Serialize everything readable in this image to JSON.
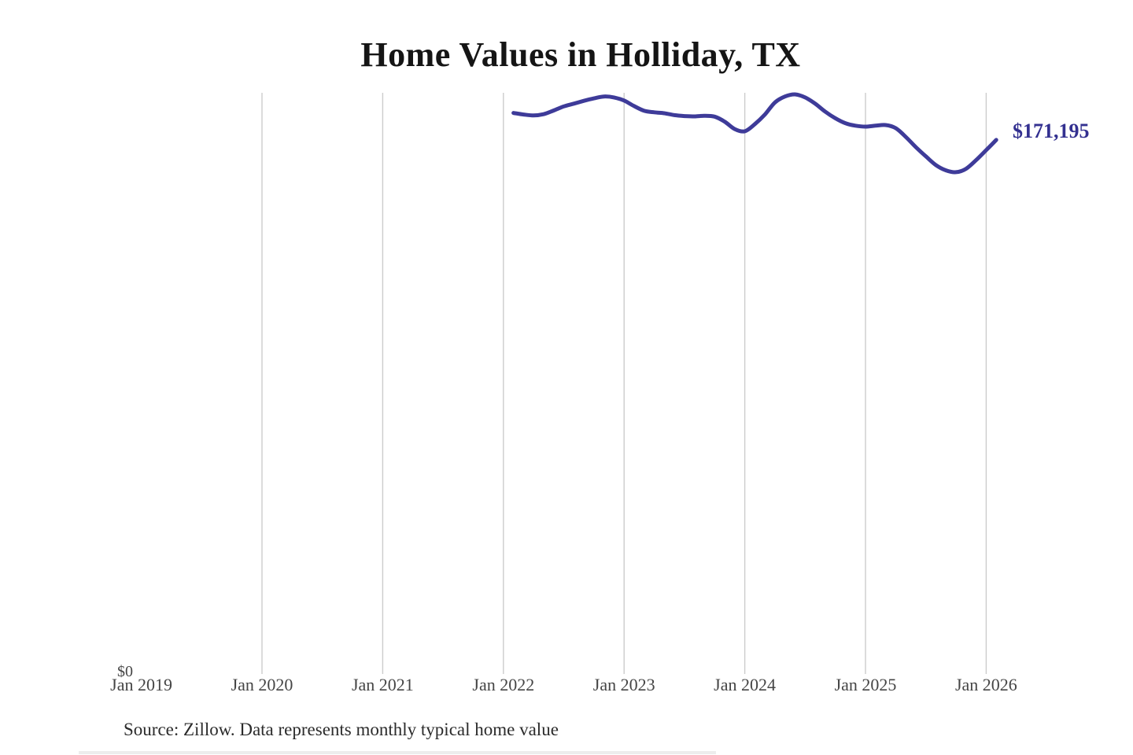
{
  "chart_data": {
    "type": "line",
    "title": "Home Values in Holliday, TX",
    "source_note": "Source: Zillow. Data represents monthly typical home value",
    "end_label": "$171,195",
    "latest_value": 171195,
    "x_tick_labels": [
      "Jan 2019",
      "Jan 2020",
      "Jan 2021",
      "Jan 2022",
      "Jan 2023",
      "Jan 2024",
      "Jan 2025",
      "Jan 2026"
    ],
    "y_axis": {
      "zero_label": "$0",
      "ylim": [
        0,
        186000
      ],
      "only_zero_labeled": true
    },
    "grid": {
      "vertical": true,
      "horizontal": false
    },
    "legend": "none",
    "series": [
      {
        "name": "Monthly typical home value",
        "x": [
          "2022-02",
          "2022-03",
          "2022-04",
          "2022-05",
          "2022-06",
          "2022-07",
          "2022-08",
          "2022-09",
          "2022-10",
          "2022-11",
          "2022-12",
          "2023-01",
          "2023-02",
          "2023-03",
          "2023-04",
          "2023-05",
          "2023-06",
          "2023-07",
          "2023-08",
          "2023-09",
          "2023-10",
          "2023-11",
          "2023-12",
          "2024-01",
          "2024-02",
          "2024-03",
          "2024-04",
          "2024-05",
          "2024-06",
          "2024-07",
          "2024-08",
          "2024-09",
          "2024-10",
          "2024-11",
          "2024-12",
          "2025-01",
          "2025-02",
          "2025-03",
          "2025-04",
          "2025-05",
          "2025-06",
          "2025-07",
          "2025-08",
          "2025-09",
          "2025-10",
          "2025-11",
          "2025-12",
          "2026-01",
          "2026-02"
        ],
        "values": [
          179900,
          179400,
          179100,
          179500,
          180700,
          182000,
          182900,
          183800,
          184600,
          185200,
          184900,
          183900,
          182100,
          180600,
          180100,
          179800,
          179200,
          178900,
          178800,
          179000,
          178700,
          177100,
          174700,
          174000,
          176300,
          179400,
          183300,
          185200,
          185900,
          184900,
          182900,
          180300,
          178200,
          176600,
          175800,
          175500,
          175800,
          176000,
          175000,
          172200,
          168900,
          165900,
          163100,
          161400,
          160800,
          161900,
          164700,
          167900,
          171195
        ]
      }
    ],
    "colors": {
      "line": "#3e3b99",
      "end_label": "#333090",
      "grid": "#cccccc",
      "axis_text": "#454545",
      "title": "#151515",
      "source": "#2b2b2b"
    }
  }
}
